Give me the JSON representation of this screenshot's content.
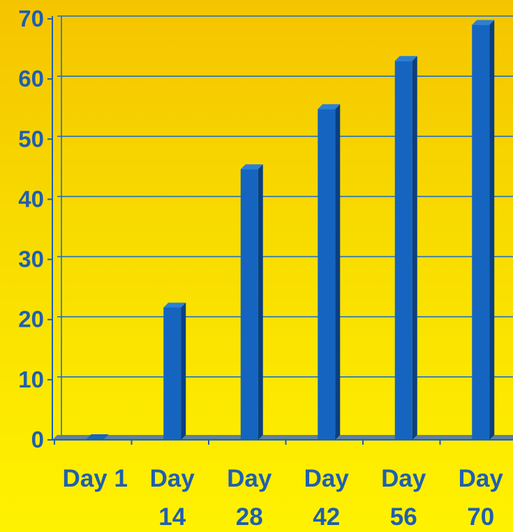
{
  "chart_data": {
    "type": "bar",
    "categories": [
      "Day 1",
      "Day 14",
      "Day 28",
      "Day 42",
      "Day 56",
      "Day 70"
    ],
    "category_label_lines": [
      [
        "Day 1"
      ],
      [
        "Day",
        "14"
      ],
      [
        "Day",
        "28"
      ],
      [
        "Day",
        "42"
      ],
      [
        "Day",
        "56"
      ],
      [
        "Day",
        "70"
      ]
    ],
    "values": [
      0,
      22,
      45,
      55,
      63,
      69
    ],
    "yticks": [
      "0",
      "10",
      "20",
      "30",
      "40",
      "50",
      "60",
      "70"
    ],
    "ylim": [
      0,
      70
    ],
    "grid": true,
    "title": "",
    "xlabel": "",
    "ylabel": ""
  },
  "colors": {
    "bar_front": "#1565c0",
    "bar_side": "#0b3f80",
    "bar_top": "#2a7fd8",
    "gridline": "#1f6fc8",
    "axis": "#1f5fb0",
    "floor": "#5a7fa8"
  }
}
